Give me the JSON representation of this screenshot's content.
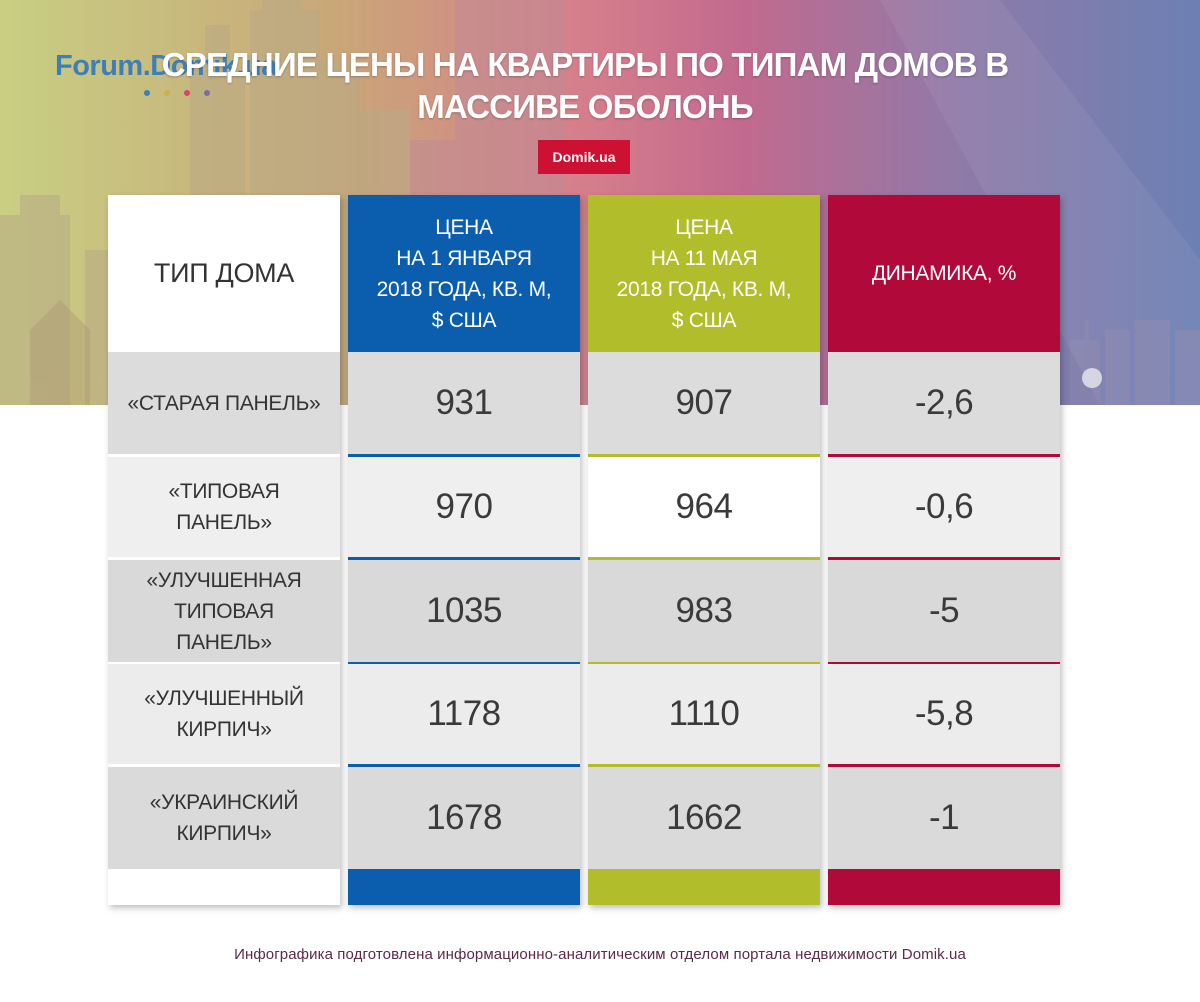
{
  "logo": {
    "text": "Forum.Domik.ua",
    "dot_colors": [
      "#3f7fb8",
      "#c9b24a",
      "#d14a6a",
      "#7f6aa8"
    ]
  },
  "title": {
    "line1": "СРЕДНИЕ ЦЕНЫ НА КВАРТИРЫ ПО ТИПАМ ДОМОВ В",
    "line2": "МАССИВЕ ОБОЛОНЬ"
  },
  "badge": "Domik.ua",
  "colors": {
    "col_type": "#ffffff",
    "col_jan": "#0b5eae",
    "col_may": "#b1bd2b",
    "col_dyn": "#b10a3a",
    "badge": "#cc1133"
  },
  "table": {
    "headers": {
      "type": "ТИП ДОМА",
      "jan": {
        "l1": "ЦЕНА",
        "l2": "НА 1 ЯНВАРЯ",
        "l3": "2018 ГОДА, КВ. М,",
        "l4": "$ США"
      },
      "may": {
        "l1": "ЦЕНА",
        "l2": "НА 11 МАЯ",
        "l3": "2018 ГОДА, КВ. М,",
        "l4": "$ США"
      },
      "dyn": "ДИНАМИКА, %"
    },
    "rows": [
      {
        "type": "«СТАРАЯ ПАНЕЛЬ»",
        "jan": "931",
        "may": "907",
        "dyn": "-2,6"
      },
      {
        "type_l1": "«ТИПОВАЯ",
        "type_l2": "ПАНЕЛЬ»",
        "jan": "970",
        "may": "964",
        "dyn": "-0,6"
      },
      {
        "type_l1": "«УЛУЧШЕННАЯ",
        "type_l2": "ТИПОВАЯ",
        "type_l3": "ПАНЕЛЬ»",
        "jan": "1035",
        "may": "983",
        "dyn": "-5"
      },
      {
        "type_l1": "«УЛУЧШЕННЫЙ",
        "type_l2": "КИРПИЧ»",
        "jan": "1178",
        "may": "1110",
        "dyn": "-5,8"
      },
      {
        "type_l1": "«УКРАИНСКИЙ",
        "type_l2": "КИРПИЧ»",
        "jan": "1678",
        "may": "1662",
        "dyn": "-1"
      }
    ]
  },
  "footer": "Инфографика подготовлена информационно-аналитическим отделом портала недвижимости Domik.ua"
}
